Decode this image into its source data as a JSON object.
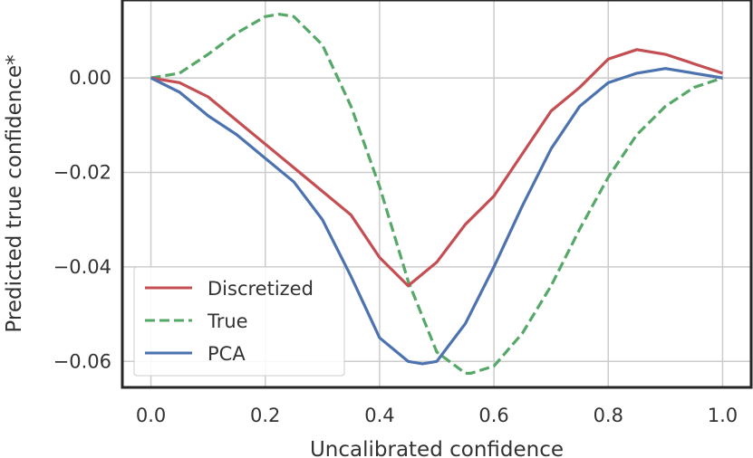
{
  "chart_data": {
    "type": "line",
    "xlabel": "Uncalibrated confidence",
    "ylabel": "Predicted true confidence*",
    "xlim": [
      -0.05,
      1.05
    ],
    "ylim": [
      -0.0655,
      0.0165
    ],
    "x_ticks": [
      0.0,
      0.2,
      0.4,
      0.6,
      0.8,
      1.0
    ],
    "x_tick_labels": [
      "0.0",
      "0.2",
      "0.4",
      "0.6",
      "0.8",
      "1.0"
    ],
    "y_ticks": [
      0.0,
      -0.02,
      -0.04,
      -0.06
    ],
    "y_tick_labels": [
      "0.00",
      "−0.02",
      "−0.04",
      "−0.06"
    ],
    "grid": true,
    "legend_position": "lower-left",
    "series": [
      {
        "name": "Discretized",
        "color": "#c44e52",
        "style": "solid",
        "x": [
          0.0,
          0.05,
          0.1,
          0.15,
          0.2,
          0.25,
          0.3,
          0.35,
          0.4,
          0.45,
          0.5,
          0.55,
          0.6,
          0.65,
          0.7,
          0.75,
          0.8,
          0.85,
          0.9,
          0.95,
          1.0
        ],
        "y": [
          0.0,
          -0.001,
          -0.004,
          -0.009,
          -0.014,
          -0.019,
          -0.024,
          -0.029,
          -0.038,
          -0.044,
          -0.039,
          -0.031,
          -0.025,
          -0.016,
          -0.007,
          -0.002,
          0.004,
          0.006,
          0.005,
          0.003,
          0.001
        ]
      },
      {
        "name": "True",
        "color": "#55a868",
        "style": "dashed",
        "x": [
          0.0,
          0.05,
          0.1,
          0.15,
          0.2,
          0.225,
          0.25,
          0.3,
          0.35,
          0.4,
          0.45,
          0.5,
          0.55,
          0.56,
          0.6,
          0.65,
          0.7,
          0.75,
          0.8,
          0.85,
          0.9,
          0.95,
          1.0
        ],
        "y": [
          0.0,
          0.001,
          0.005,
          0.0095,
          0.013,
          0.0135,
          0.013,
          0.007,
          -0.006,
          -0.023,
          -0.043,
          -0.058,
          -0.0625,
          -0.0625,
          -0.061,
          -0.054,
          -0.044,
          -0.032,
          -0.021,
          -0.012,
          -0.006,
          -0.002,
          0.0
        ]
      },
      {
        "name": "PCA",
        "color": "#4c72b0",
        "style": "solid",
        "x": [
          0.0,
          0.05,
          0.1,
          0.15,
          0.2,
          0.25,
          0.3,
          0.35,
          0.4,
          0.45,
          0.475,
          0.5,
          0.55,
          0.6,
          0.65,
          0.7,
          0.75,
          0.8,
          0.85,
          0.9,
          0.95,
          1.0
        ],
        "y": [
          0.0,
          -0.003,
          -0.008,
          -0.012,
          -0.017,
          -0.022,
          -0.03,
          -0.042,
          -0.055,
          -0.06,
          -0.0605,
          -0.06,
          -0.052,
          -0.04,
          -0.027,
          -0.015,
          -0.006,
          -0.001,
          0.001,
          0.002,
          0.001,
          0.0
        ]
      }
    ]
  }
}
